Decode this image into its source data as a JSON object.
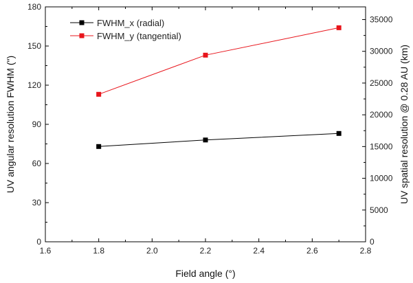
{
  "chart_data": {
    "type": "line",
    "xlabel": "Field angle (°)",
    "ylabel_left": "UV angular resolution FWHM (\")",
    "ylabel_right": "UV spatial resolution @ 0.28 AU (km)",
    "xlim": [
      1.6,
      2.8
    ],
    "ylim_left": [
      0,
      180
    ],
    "ylim_right": [
      0,
      37000
    ],
    "x_ticks": [
      1.6,
      1.8,
      2.0,
      2.2,
      2.4,
      2.6,
      2.8
    ],
    "x_tick_labels": [
      "1.6",
      "1.8",
      "2.0",
      "2.2",
      "2.4",
      "2.6",
      "2.8"
    ],
    "y_left_ticks": [
      0,
      30,
      60,
      90,
      120,
      150,
      180
    ],
    "y_left_tick_labels": [
      "0",
      "30",
      "60",
      "90",
      "120",
      "150",
      "180"
    ],
    "y_right_ticks": [
      0,
      5000,
      10000,
      15000,
      20000,
      25000,
      30000,
      35000
    ],
    "y_right_tick_labels": [
      "0",
      "5000",
      "10000",
      "15000",
      "20000",
      "25000",
      "30000",
      "35000"
    ],
    "grid": false,
    "legend_position": "top-left",
    "series": [
      {
        "name": "FWHM_x (radial)",
        "color": "#000000",
        "marker": "square",
        "x": [
          1.8,
          2.2,
          2.7
        ],
        "values": [
          73,
          78,
          83
        ]
      },
      {
        "name": "FWHM_y (tangential)",
        "color": "#e8141b",
        "marker": "square",
        "x": [
          1.8,
          2.2,
          2.7
        ],
        "values": [
          113,
          143,
          164
        ]
      }
    ]
  }
}
